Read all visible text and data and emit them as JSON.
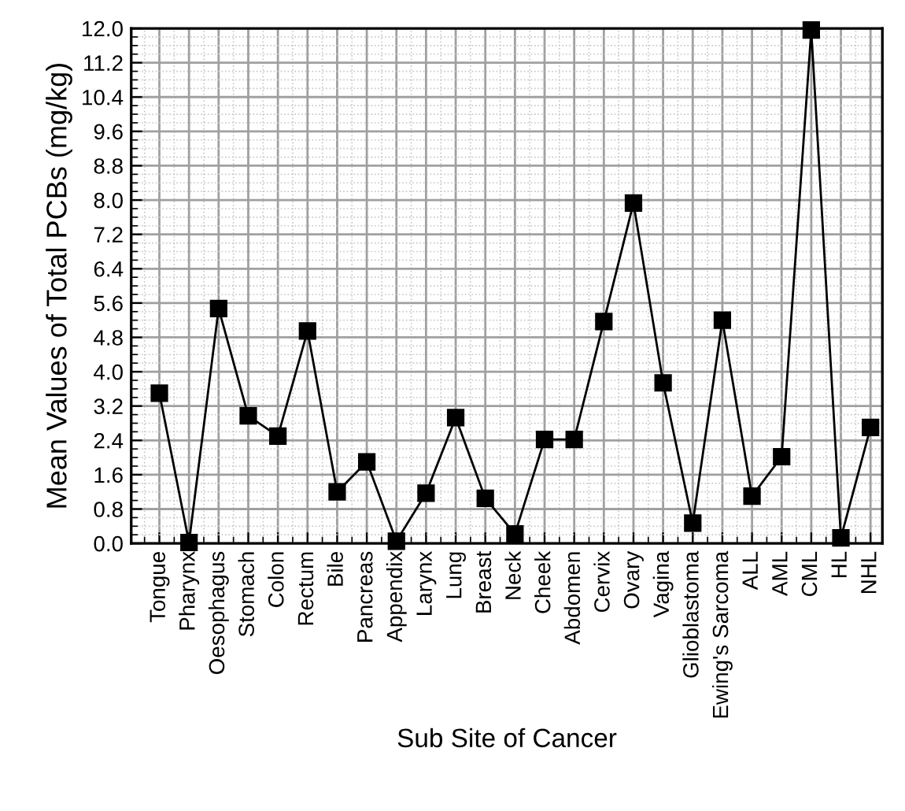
{
  "chart_data": {
    "type": "line",
    "xlabel": "Sub Site of Cancer",
    "ylabel": "Mean Values of Total PCBs (mg/kg)",
    "categories": [
      "Tongue",
      "Pharynx",
      "Oesophagus",
      "Stomach",
      "Colon",
      "Rectum",
      "Bile",
      "Pancreas",
      "Appendix",
      "Larynx",
      "Lung",
      "Breast",
      "Neck",
      "Cheek",
      "Abdomen",
      "Cervix",
      "Ovary",
      "Vagina",
      "Glioblastoma",
      "Ewing's Sarcoma",
      "ALL",
      "AML",
      "CML",
      "HL",
      "NHL"
    ],
    "series": [
      {
        "color": "#000000",
        "values": [
          3.5,
          0.02,
          5.47,
          2.97,
          2.5,
          4.95,
          1.2,
          1.9,
          0.05,
          1.17,
          2.93,
          1.05,
          0.22,
          2.42,
          2.42,
          5.17,
          7.93,
          3.74,
          0.47,
          5.2,
          1.1,
          2.02,
          11.96,
          0.13,
          2.7
        ]
      }
    ],
    "ylim": [
      0,
      12
    ],
    "yticks": [
      {
        "value": 0,
        "label": "0.0"
      },
      {
        "value": 0.8,
        "label": "0.8"
      },
      {
        "value": 1.6,
        "label": "1.6"
      },
      {
        "value": 2.4,
        "label": "2.4"
      },
      {
        "value": 3.2,
        "label": "3.2"
      },
      {
        "value": 4,
        "label": "4.0"
      },
      {
        "value": 4.8,
        "label": "4.8"
      },
      {
        "value": 5.6,
        "label": "5.6"
      },
      {
        "value": 6.4,
        "label": "6.4"
      },
      {
        "value": 7.2,
        "label": "7.2"
      },
      {
        "value": 8,
        "label": "8.0"
      },
      {
        "value": 8.8,
        "label": "8.8"
      },
      {
        "value": 9.6,
        "label": "9.6"
      },
      {
        "value": 10.4,
        "label": "10.4"
      },
      {
        "value": 11.2,
        "label": "11.2"
      },
      {
        "value": 12,
        "label": "12.0"
      }
    ],
    "grid": true,
    "marker": "square",
    "line_style": "solid"
  }
}
